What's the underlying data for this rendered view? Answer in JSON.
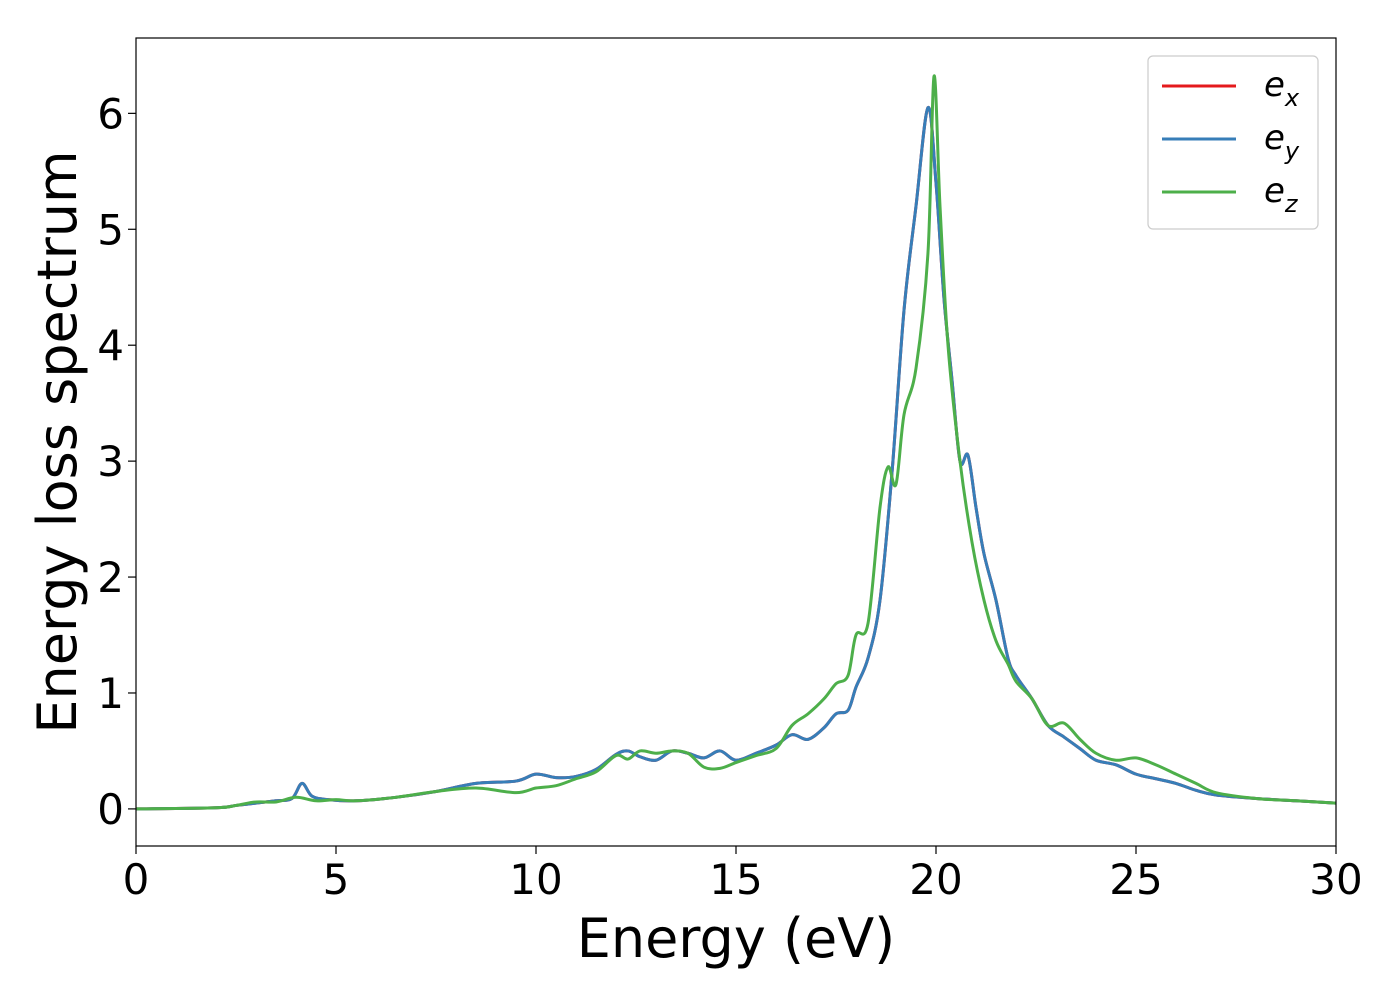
{
  "chart_data": {
    "type": "line",
    "title": "",
    "xlabel": "Energy (eV)",
    "ylabel": "Energy loss spectrum",
    "xlim": [
      0,
      30
    ],
    "ylim": [
      -0.32,
      6.65
    ],
    "x_ticks": [
      0,
      5,
      10,
      15,
      20,
      25,
      30
    ],
    "x_tick_labels": [
      "0",
      "5",
      "10",
      "15",
      "20",
      "25",
      "30"
    ],
    "y_ticks": [
      0,
      1,
      2,
      3,
      4,
      5,
      6
    ],
    "y_tick_labels": [
      "0",
      "1",
      "2",
      "3",
      "4",
      "5",
      "6"
    ],
    "grid": false,
    "legend_position": "top-right",
    "series": [
      {
        "name": "e_x",
        "label_main": "e",
        "label_sub": "x",
        "color": "#e41a1c",
        "x": [
          0,
          2,
          2.5,
          3,
          3.5,
          3.9,
          4.15,
          4.4,
          4.8,
          5.5,
          6.5,
          7.5,
          8.5,
          9.5,
          10,
          10.5,
          11,
          11.5,
          12,
          12.3,
          12.6,
          13,
          13.4,
          13.8,
          14.2,
          14.6,
          15,
          15.5,
          16,
          16.4,
          16.8,
          17.2,
          17.5,
          17.8,
          18,
          18.3,
          18.6,
          18.9,
          19.2,
          19.5,
          19.8,
          20,
          20.2,
          20.4,
          20.6,
          20.8,
          21,
          21.2,
          21.5,
          21.8,
          22,
          22.4,
          22.8,
          23.2,
          23.6,
          24,
          24.5,
          25,
          25.5,
          26,
          26.5,
          27,
          28,
          29,
          30
        ],
        "y": [
          0,
          0.01,
          0.03,
          0.05,
          0.07,
          0.09,
          0.22,
          0.11,
          0.08,
          0.07,
          0.1,
          0.15,
          0.22,
          0.24,
          0.3,
          0.27,
          0.28,
          0.34,
          0.47,
          0.5,
          0.45,
          0.42,
          0.5,
          0.48,
          0.44,
          0.5,
          0.42,
          0.48,
          0.55,
          0.64,
          0.6,
          0.7,
          0.82,
          0.85,
          1.05,
          1.3,
          1.8,
          2.9,
          4.3,
          5.2,
          6.05,
          5.4,
          4.4,
          3.7,
          3.0,
          3.05,
          2.6,
          2.2,
          1.8,
          1.3,
          1.15,
          0.95,
          0.72,
          0.62,
          0.52,
          0.42,
          0.38,
          0.3,
          0.26,
          0.22,
          0.16,
          0.12,
          0.09,
          0.07,
          0.05
        ]
      },
      {
        "name": "e_y",
        "label_main": "e",
        "label_sub": "y",
        "color": "#377eb8",
        "x": [
          0,
          2,
          2.5,
          3,
          3.5,
          3.9,
          4.15,
          4.4,
          4.8,
          5.5,
          6.5,
          7.5,
          8.5,
          9.5,
          10,
          10.5,
          11,
          11.5,
          12,
          12.3,
          12.6,
          13,
          13.4,
          13.8,
          14.2,
          14.6,
          15,
          15.5,
          16,
          16.4,
          16.8,
          17.2,
          17.5,
          17.8,
          18,
          18.3,
          18.6,
          18.9,
          19.2,
          19.5,
          19.8,
          20,
          20.2,
          20.4,
          20.6,
          20.8,
          21,
          21.2,
          21.5,
          21.8,
          22,
          22.4,
          22.8,
          23.2,
          23.6,
          24,
          24.5,
          25,
          25.5,
          26,
          26.5,
          27,
          28,
          29,
          30
        ],
        "y": [
          0,
          0.01,
          0.03,
          0.05,
          0.07,
          0.09,
          0.22,
          0.11,
          0.08,
          0.07,
          0.1,
          0.15,
          0.22,
          0.24,
          0.3,
          0.27,
          0.28,
          0.34,
          0.47,
          0.5,
          0.45,
          0.42,
          0.5,
          0.48,
          0.44,
          0.5,
          0.42,
          0.48,
          0.55,
          0.64,
          0.6,
          0.7,
          0.82,
          0.85,
          1.05,
          1.3,
          1.8,
          2.9,
          4.3,
          5.2,
          6.05,
          5.4,
          4.4,
          3.7,
          3.0,
          3.05,
          2.6,
          2.2,
          1.8,
          1.3,
          1.15,
          0.95,
          0.72,
          0.62,
          0.52,
          0.42,
          0.38,
          0.3,
          0.26,
          0.22,
          0.16,
          0.12,
          0.09,
          0.07,
          0.05
        ]
      },
      {
        "name": "e_z",
        "label_main": "e",
        "label_sub": "z",
        "color": "#4daf4a",
        "x": [
          0,
          2,
          2.5,
          3,
          3.5,
          4,
          4.5,
          5,
          5.5,
          6.5,
          7.5,
          8.5,
          9.5,
          10,
          10.5,
          11,
          11.5,
          12,
          12.3,
          12.6,
          13,
          13.4,
          13.8,
          14.2,
          14.6,
          15,
          15.5,
          16,
          16.4,
          16.8,
          17.2,
          17.5,
          17.8,
          18,
          18.3,
          18.6,
          18.8,
          19,
          19.2,
          19.5,
          19.8,
          19.95,
          20.1,
          20.3,
          20.6,
          20.9,
          21.2,
          21.5,
          21.8,
          22,
          22.4,
          22.8,
          23.2,
          23.6,
          24,
          24.5,
          25,
          25.5,
          26,
          26.5,
          27,
          28,
          29,
          30
        ],
        "y": [
          0,
          0.01,
          0.03,
          0.06,
          0.06,
          0.1,
          0.07,
          0.08,
          0.07,
          0.1,
          0.15,
          0.18,
          0.14,
          0.18,
          0.2,
          0.26,
          0.32,
          0.46,
          0.43,
          0.5,
          0.48,
          0.5,
          0.48,
          0.36,
          0.35,
          0.4,
          0.46,
          0.52,
          0.72,
          0.82,
          0.95,
          1.08,
          1.15,
          1.5,
          1.6,
          2.6,
          2.95,
          2.8,
          3.4,
          3.8,
          4.8,
          6.32,
          5.2,
          4.0,
          3.0,
          2.3,
          1.8,
          1.45,
          1.25,
          1.1,
          0.95,
          0.72,
          0.74,
          0.6,
          0.48,
          0.42,
          0.44,
          0.38,
          0.3,
          0.22,
          0.14,
          0.09,
          0.07,
          0.05
        ]
      }
    ]
  }
}
